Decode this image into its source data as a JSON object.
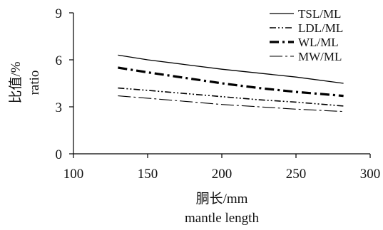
{
  "chart_data": {
    "type": "line",
    "title": "",
    "xlabel": [
      "胴长/mm",
      "mantle length"
    ],
    "ylabel": [
      "比值/%",
      "ratio"
    ],
    "xlim": [
      100,
      300
    ],
    "ylim": [
      0,
      9
    ],
    "xticks": [
      "100",
      "150",
      "200",
      "250",
      "300"
    ],
    "yticks": [
      "0",
      "3",
      "6",
      "9"
    ],
    "grid": false,
    "legend_position": "top-right",
    "series": [
      {
        "name": "TSL/ML",
        "style": "solid",
        "x": [
          130,
          150,
          175,
          200,
          225,
          250,
          282
        ],
        "y": [
          6.3,
          6.0,
          5.7,
          5.4,
          5.15,
          4.9,
          4.5
        ]
      },
      {
        "name": "LDL/ML",
        "style": "dash-dot-dot",
        "x": [
          130,
          150,
          175,
          200,
          225,
          250,
          282
        ],
        "y": [
          4.2,
          4.05,
          3.85,
          3.65,
          3.45,
          3.3,
          3.05
        ]
      },
      {
        "name": "WL/ML",
        "style": "bold-dash-dot",
        "x": [
          130,
          150,
          175,
          200,
          225,
          250,
          282
        ],
        "y": [
          5.5,
          5.2,
          4.85,
          4.5,
          4.2,
          3.95,
          3.7
        ]
      },
      {
        "name": "MW/ML",
        "style": "long-dash-dot",
        "x": [
          130,
          150,
          175,
          200,
          225,
          250,
          282
        ],
        "y": [
          3.7,
          3.55,
          3.35,
          3.15,
          3.0,
          2.85,
          2.7
        ]
      }
    ]
  }
}
